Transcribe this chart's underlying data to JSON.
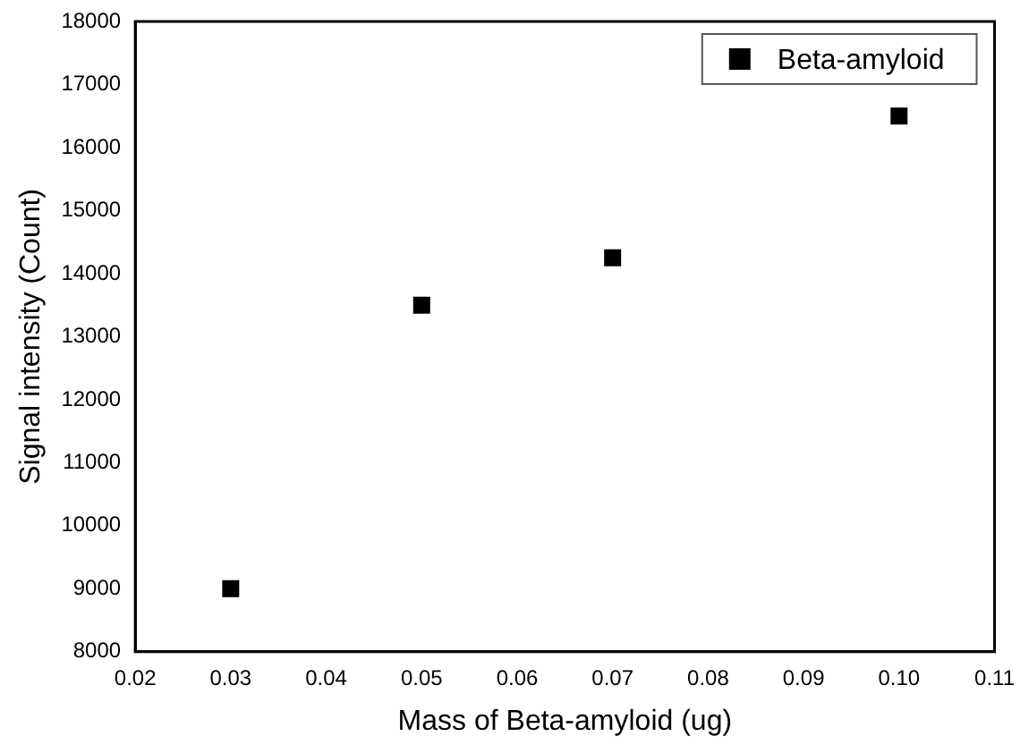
{
  "chart_data": {
    "type": "scatter",
    "xlabel": "Mass of Beta-amyloid (ug)",
    "ylabel": "Signal intensity (Count)",
    "x": [
      0.03,
      0.05,
      0.07,
      0.1
    ],
    "series": [
      {
        "name": "Beta-amyloid",
        "color": "#000000",
        "values": [
          9000,
          13500,
          14250,
          16500
        ]
      }
    ],
    "xlim": [
      0.02,
      0.11
    ],
    "xticks": [
      0.02,
      0.03,
      0.04,
      0.05,
      0.06,
      0.07,
      0.08,
      0.09,
      {
        "value": 0.1,
        "label": "0.10"
      },
      0.11
    ],
    "ylim": [
      8000,
      18000
    ],
    "yticks": [
      8000,
      9000,
      10000,
      11000,
      12000,
      13000,
      14000,
      15000,
      16000,
      17000,
      18000
    ],
    "grid": false,
    "legend": "top right",
    "marker": "square"
  }
}
